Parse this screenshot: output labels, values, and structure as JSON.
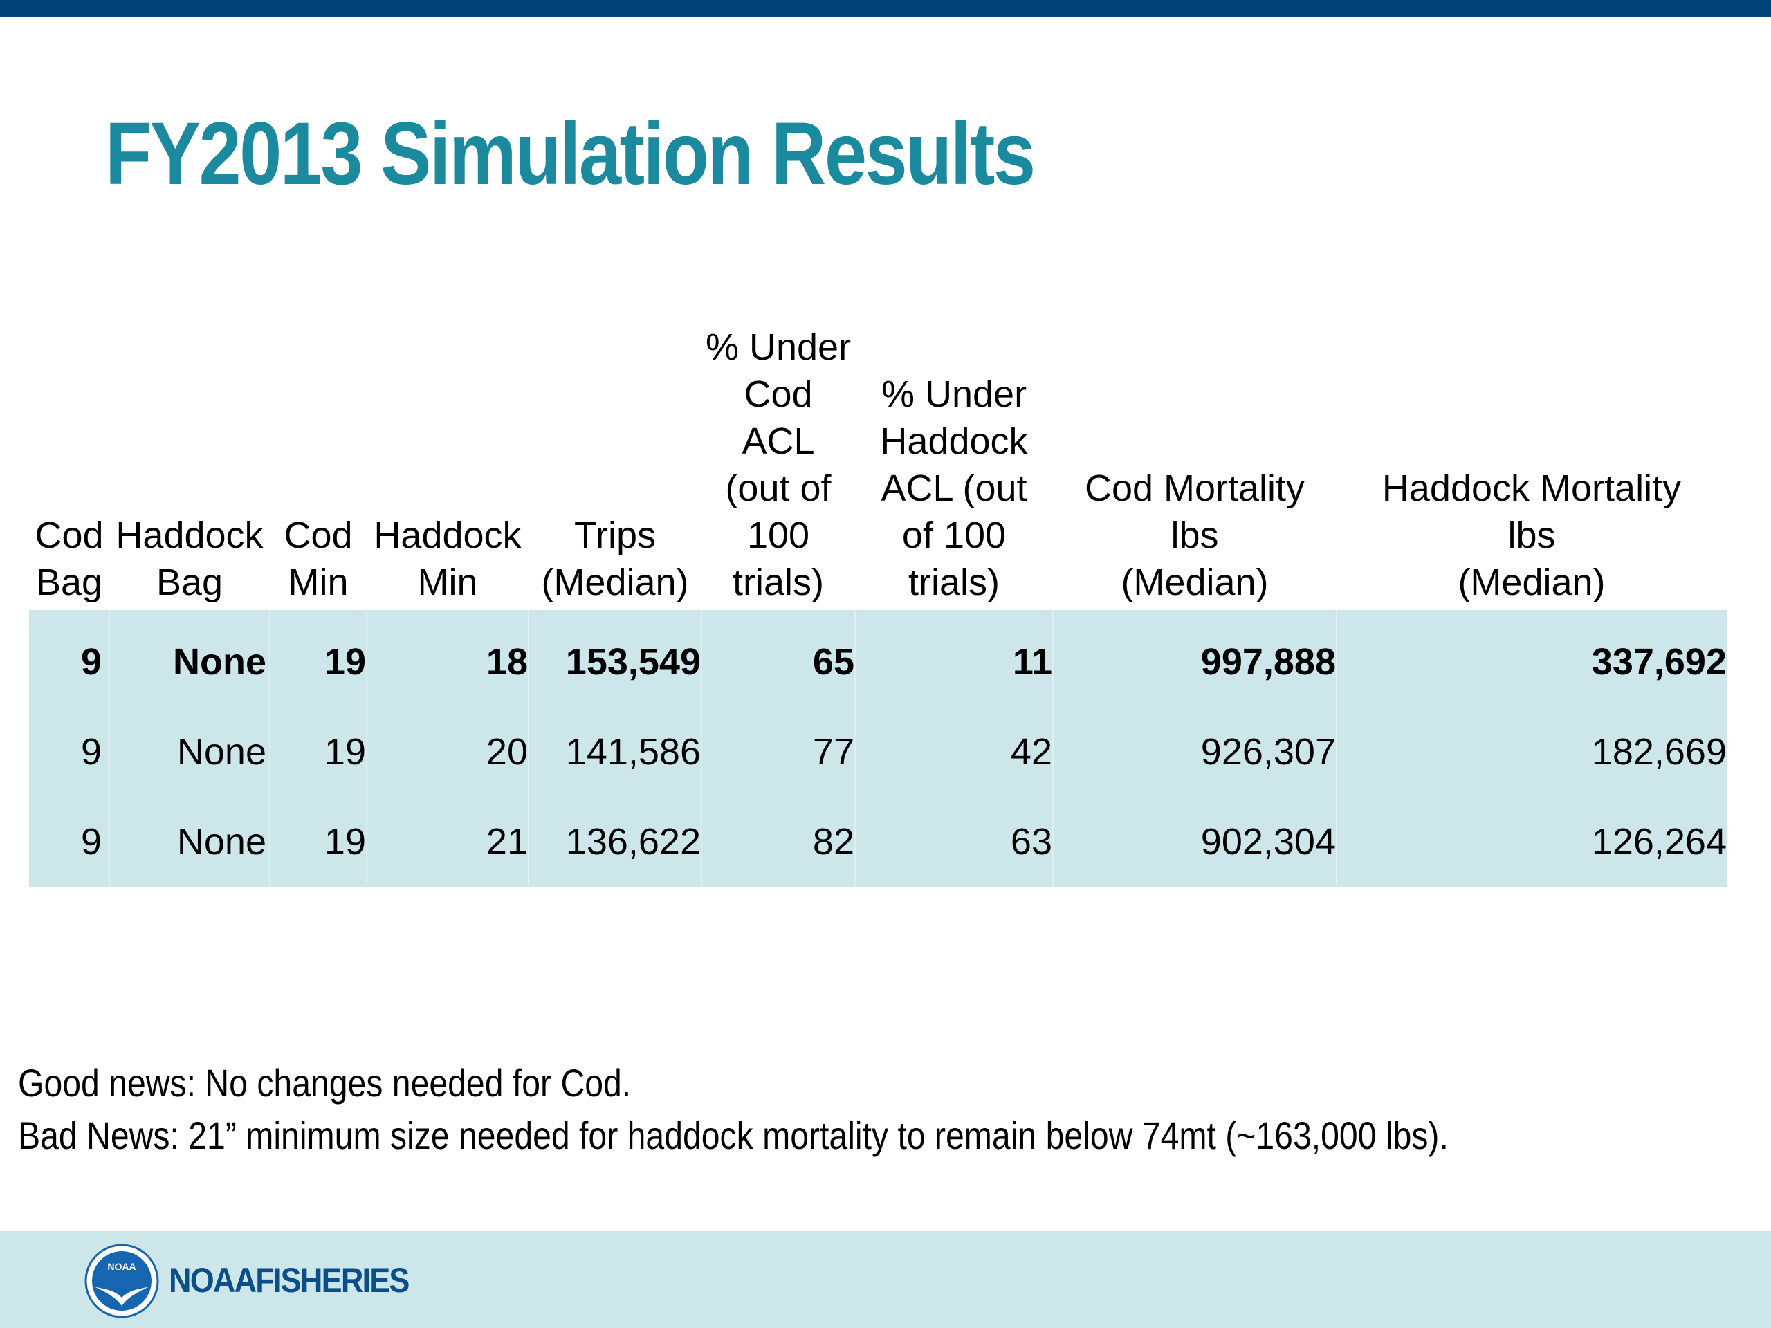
{
  "colors": {
    "top_bar": "#004376",
    "title": "#1b8a9e",
    "table_fill": "#cde6ea",
    "footer_bg": "#cde6ea",
    "logo_text": "#0b4f8a",
    "logo_emblem": "#1565b0"
  },
  "slide": {
    "title": "FY2013 Simulation Results"
  },
  "table": {
    "headers": [
      [
        "Cod",
        "Bag"
      ],
      [
        "Haddock",
        "Bag"
      ],
      [
        "Cod",
        "Min"
      ],
      [
        "Haddock",
        "Min"
      ],
      [
        "Trips",
        "(Median)"
      ],
      [
        "% Under",
        "Cod",
        "ACL",
        "(out of",
        "100",
        "trials)"
      ],
      [
        "% Under",
        "Haddock",
        "ACL (out",
        "of 100",
        "trials)"
      ],
      [
        "Cod Mortality",
        "lbs",
        "(Median)"
      ],
      [
        "Haddock Mortality",
        "lbs",
        "(Median)"
      ]
    ],
    "rows": [
      [
        "9",
        "None",
        "19",
        "18",
        "153,549",
        "65",
        "11",
        "997,888",
        "337,692"
      ],
      [
        "9",
        "None",
        "19",
        "20",
        "141,586",
        "77",
        "42",
        "926,307",
        "182,669"
      ],
      [
        "9",
        "None",
        "19",
        "21",
        "136,622",
        "82",
        "63",
        "902,304",
        "126,264"
      ]
    ]
  },
  "notes": {
    "line1": "Good news:  No changes needed for Cod.",
    "line2": "Bad News: 21” minimum size needed for haddock mortality to remain below 74mt (~163,000 lbs)."
  },
  "footer": {
    "logo_icon": "noaa-emblem-icon",
    "emblem_text": "NOAA",
    "logo_part1": "NOAA",
    "logo_part2": "FISHERIES"
  }
}
